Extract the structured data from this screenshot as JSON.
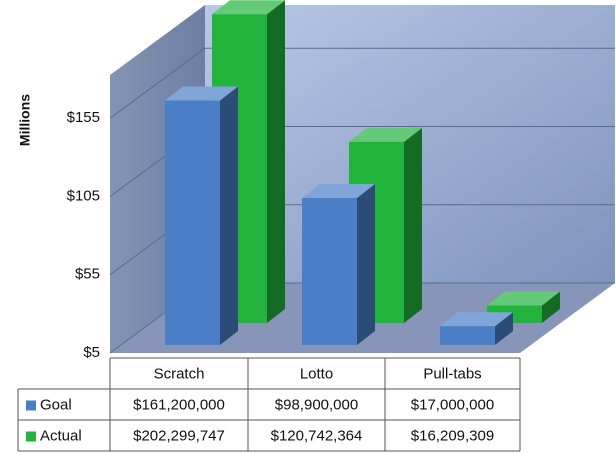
{
  "chart_data": {
    "type": "bar3d",
    "y_label": "Millions",
    "categories": [
      "Scratch",
      "Lotto",
      "Pull-tabs"
    ],
    "series": [
      {
        "name": "Goal",
        "color": "#4a7fc8",
        "values": [
          161.2,
          98.9,
          17.0
        ],
        "value_labels": [
          "$161,200,000",
          "$98,900,000",
          "$17,000,000"
        ]
      },
      {
        "name": "Actual",
        "color": "#22b33c",
        "values": [
          202.299747,
          120.742364,
          16.209309
        ],
        "value_labels": [
          "$202,299,747",
          "$120,742,364",
          "$16,209,309"
        ]
      }
    ],
    "ylim": [
      5,
      205
    ],
    "yticks": [
      {
        "value": 5,
        "label": "$5"
      },
      {
        "value": 55,
        "label": "$55"
      },
      {
        "value": 105,
        "label": "$105"
      },
      {
        "value": 155,
        "label": "$155"
      }
    ],
    "grid": true
  }
}
